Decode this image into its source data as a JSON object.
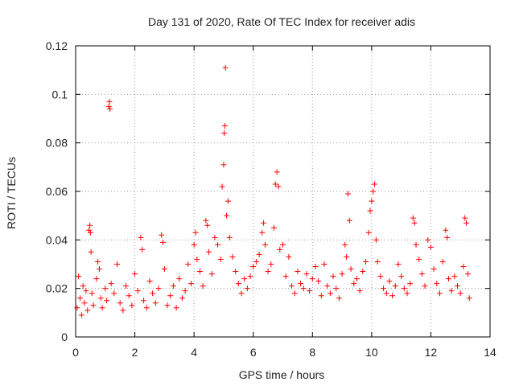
{
  "chart_data": {
    "type": "scatter",
    "title": "Day 131 of 2020, Rate Of TEC Index for receiver adis",
    "xlabel": "GPS time / hours",
    "ylabel": "ROTI / TECUs",
    "xlim": [
      0,
      14
    ],
    "ylim": [
      0,
      0.12
    ],
    "xticks": [
      0,
      2,
      4,
      6,
      8,
      10,
      12,
      14
    ],
    "yticks": [
      0,
      0.02,
      0.04,
      0.06,
      0.08,
      0.1,
      0.12
    ],
    "xtick_labels": [
      "0",
      "2",
      "4",
      "6",
      "8",
      "10",
      "12",
      "14"
    ],
    "ytick_labels": [
      "0",
      "0.02",
      "0.04",
      "0.06",
      "0.08",
      "0.1",
      "0.12"
    ],
    "grid": true,
    "marker": "plus",
    "color": "#ff0000",
    "series": [
      {
        "name": "ROTI",
        "points": [
          [
            0.05,
            0.012
          ],
          [
            0.1,
            0.025
          ],
          [
            0.15,
            0.016
          ],
          [
            0.2,
            0.009
          ],
          [
            0.25,
            0.021
          ],
          [
            0.3,
            0.014
          ],
          [
            0.35,
            0.019
          ],
          [
            0.4,
            0.011
          ],
          [
            0.45,
            0.044
          ],
          [
            0.48,
            0.046
          ],
          [
            0.5,
            0.043
          ],
          [
            0.52,
            0.035
          ],
          [
            0.55,
            0.018
          ],
          [
            0.6,
            0.013
          ],
          [
            0.7,
            0.024
          ],
          [
            0.75,
            0.031
          ],
          [
            0.8,
            0.028
          ],
          [
            0.85,
            0.016
          ],
          [
            0.9,
            0.012
          ],
          [
            1.0,
            0.02
          ],
          [
            1.05,
            0.015
          ],
          [
            1.12,
            0.095
          ],
          [
            1.14,
            0.097
          ],
          [
            1.16,
            0.094
          ],
          [
            1.2,
            0.022
          ],
          [
            1.3,
            0.018
          ],
          [
            1.4,
            0.03
          ],
          [
            1.5,
            0.014
          ],
          [
            1.6,
            0.011
          ],
          [
            1.7,
            0.021
          ],
          [
            1.8,
            0.017
          ],
          [
            1.9,
            0.013
          ],
          [
            2.0,
            0.026
          ],
          [
            2.1,
            0.019
          ],
          [
            2.2,
            0.041
          ],
          [
            2.25,
            0.036
          ],
          [
            2.3,
            0.015
          ],
          [
            2.4,
            0.012
          ],
          [
            2.5,
            0.023
          ],
          [
            2.6,
            0.018
          ],
          [
            2.7,
            0.014
          ],
          [
            2.8,
            0.02
          ],
          [
            2.9,
            0.042
          ],
          [
            2.95,
            0.039
          ],
          [
            3.0,
            0.028
          ],
          [
            3.1,
            0.013
          ],
          [
            3.2,
            0.017
          ],
          [
            3.3,
            0.021
          ],
          [
            3.4,
            0.012
          ],
          [
            3.5,
            0.024
          ],
          [
            3.6,
            0.016
          ],
          [
            3.7,
            0.019
          ],
          [
            3.8,
            0.03
          ],
          [
            3.9,
            0.022
          ],
          [
            4.0,
            0.038
          ],
          [
            4.05,
            0.043
          ],
          [
            4.1,
            0.032
          ],
          [
            4.2,
            0.027
          ],
          [
            4.3,
            0.021
          ],
          [
            4.4,
            0.048
          ],
          [
            4.45,
            0.046
          ],
          [
            4.5,
            0.035
          ],
          [
            4.6,
            0.026
          ],
          [
            4.7,
            0.041
          ],
          [
            4.8,
            0.038
          ],
          [
            4.9,
            0.032
          ],
          [
            4.95,
            0.062
          ],
          [
            5.0,
            0.071
          ],
          [
            5.02,
            0.084
          ],
          [
            5.04,
            0.087
          ],
          [
            5.06,
            0.111
          ],
          [
            5.1,
            0.05
          ],
          [
            5.15,
            0.056
          ],
          [
            5.2,
            0.041
          ],
          [
            5.3,
            0.033
          ],
          [
            5.4,
            0.027
          ],
          [
            5.5,
            0.022
          ],
          [
            5.6,
            0.018
          ],
          [
            5.7,
            0.024
          ],
          [
            5.8,
            0.02
          ],
          [
            5.9,
            0.025
          ],
          [
            6.0,
            0.029
          ],
          [
            6.1,
            0.031
          ],
          [
            6.2,
            0.034
          ],
          [
            6.3,
            0.043
          ],
          [
            6.35,
            0.047
          ],
          [
            6.4,
            0.038
          ],
          [
            6.5,
            0.027
          ],
          [
            6.6,
            0.03
          ],
          [
            6.7,
            0.045
          ],
          [
            6.75,
            0.063
          ],
          [
            6.8,
            0.068
          ],
          [
            6.85,
            0.062
          ],
          [
            6.9,
            0.036
          ],
          [
            7.0,
            0.038
          ],
          [
            7.1,
            0.025
          ],
          [
            7.2,
            0.033
          ],
          [
            7.3,
            0.021
          ],
          [
            7.4,
            0.018
          ],
          [
            7.5,
            0.027
          ],
          [
            7.6,
            0.022
          ],
          [
            7.7,
            0.02
          ],
          [
            7.8,
            0.026
          ],
          [
            7.9,
            0.019
          ],
          [
            8.0,
            0.024
          ],
          [
            8.1,
            0.029
          ],
          [
            8.2,
            0.023
          ],
          [
            8.3,
            0.017
          ],
          [
            8.4,
            0.03
          ],
          [
            8.5,
            0.021
          ],
          [
            8.6,
            0.018
          ],
          [
            8.7,
            0.025
          ],
          [
            8.8,
            0.02
          ],
          [
            8.9,
            0.016
          ],
          [
            9.0,
            0.026
          ],
          [
            9.1,
            0.038
          ],
          [
            9.15,
            0.033
          ],
          [
            9.2,
            0.059
          ],
          [
            9.25,
            0.048
          ],
          [
            9.3,
            0.028
          ],
          [
            9.4,
            0.022
          ],
          [
            9.5,
            0.024
          ],
          [
            9.6,
            0.019
          ],
          [
            9.7,
            0.027
          ],
          [
            9.8,
            0.031
          ],
          [
            9.9,
            0.043
          ],
          [
            9.95,
            0.052
          ],
          [
            10.0,
            0.056
          ],
          [
            10.05,
            0.06
          ],
          [
            10.1,
            0.063
          ],
          [
            10.15,
            0.04
          ],
          [
            10.2,
            0.031
          ],
          [
            10.3,
            0.025
          ],
          [
            10.4,
            0.02
          ],
          [
            10.5,
            0.018
          ],
          [
            10.6,
            0.023
          ],
          [
            10.7,
            0.017
          ],
          [
            10.8,
            0.021
          ],
          [
            10.9,
            0.03
          ],
          [
            11.0,
            0.025
          ],
          [
            11.1,
            0.02
          ],
          [
            11.2,
            0.018
          ],
          [
            11.3,
            0.022
          ],
          [
            11.4,
            0.049
          ],
          [
            11.45,
            0.047
          ],
          [
            11.5,
            0.038
          ],
          [
            11.6,
            0.032
          ],
          [
            11.7,
            0.026
          ],
          [
            11.8,
            0.021
          ],
          [
            11.9,
            0.04
          ],
          [
            12.0,
            0.037
          ],
          [
            12.1,
            0.028
          ],
          [
            12.2,
            0.022
          ],
          [
            12.3,
            0.018
          ],
          [
            12.4,
            0.031
          ],
          [
            12.5,
            0.044
          ],
          [
            12.55,
            0.041
          ],
          [
            12.6,
            0.024
          ],
          [
            12.7,
            0.019
          ],
          [
            12.8,
            0.025
          ],
          [
            12.9,
            0.021
          ],
          [
            13.0,
            0.018
          ],
          [
            13.1,
            0.029
          ],
          [
            13.15,
            0.049
          ],
          [
            13.2,
            0.047
          ],
          [
            13.25,
            0.026
          ],
          [
            13.3,
            0.016
          ]
        ]
      }
    ]
  }
}
